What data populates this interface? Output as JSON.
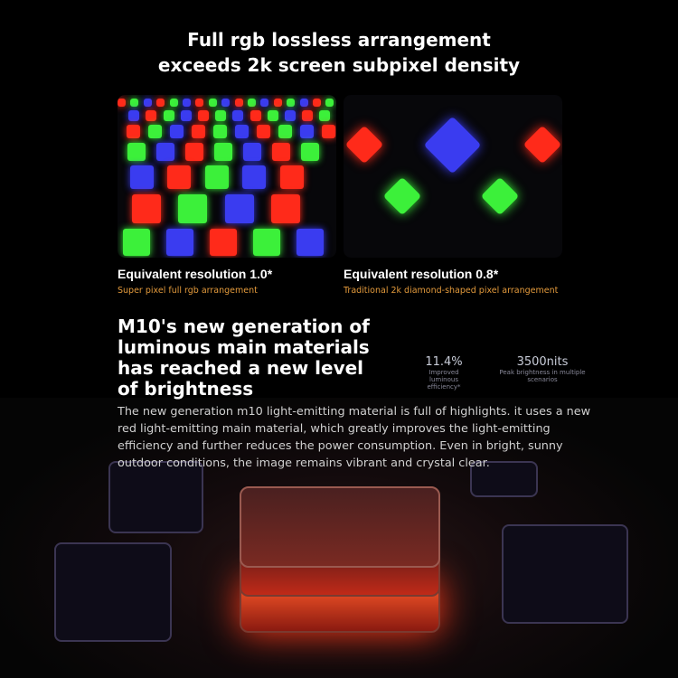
{
  "heading": {
    "line1": "Full rgb lossless arrangement",
    "line2": "exceeds 2k screen subpixel density"
  },
  "panels": [
    {
      "title": "Equivalent resolution 1.0*",
      "subtitle": "Super pixel full rgb arrangement"
    },
    {
      "title": "Equivalent resolution 0.8*",
      "subtitle": "Traditional 2k diamond-shaped pixel arrangement"
    }
  ],
  "section": {
    "title": "M10's new generation of luminous main materials has reached a new level of brightness",
    "description": "The new generation m10 light-emitting material is full of highlights. it uses a new red light-emitting main material, which greatly improves the light-emitting efficiency and further reduces the power consumption. Even in bright, sunny outdoor conditions, the image remains vibrant and crystal clear."
  },
  "stats": [
    {
      "value": "11.4%",
      "label": "Improved luminous efficiency*"
    },
    {
      "value": "3500nits",
      "label": "Peak brightness in multiple scenarios"
    }
  ],
  "colors": {
    "red": "#ff2a1a",
    "green": "#3cf03a",
    "blue": "#3a3cf0",
    "caption": "#e39a3c"
  }
}
